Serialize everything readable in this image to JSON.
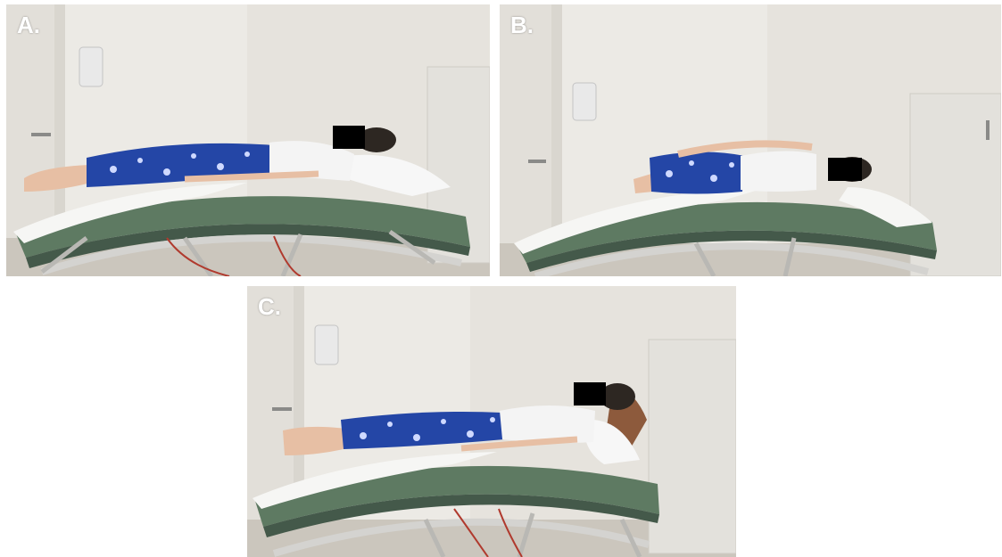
{
  "figure": {
    "panels": [
      {
        "id": "a",
        "label": "A.",
        "posture": "supine"
      },
      {
        "id": "b",
        "label": "B.",
        "posture": "side-lying"
      },
      {
        "id": "c",
        "label": "C.",
        "posture": "supine-head-raised"
      }
    ]
  },
  "colors": {
    "wall": "#eceae5",
    "wall_shade": "#dedbd4",
    "floor": "#cbc6bd",
    "mattress": "#5e7a62",
    "mattress_dark": "#44594a",
    "sheet": "#f6f6f4",
    "frame": "#d4d3d0",
    "pants": "#2446a6",
    "pants_pattern": "#cfd9ff",
    "shirt": "#f4f4f4",
    "skin": "#e7bfa4",
    "hair": "#2d2722",
    "censor": "#000000",
    "pillow": "#f7f7f7",
    "cabinet": "#e3e1dc",
    "door_frame": "#d9d6cf",
    "dispenser": "#e9e9e9",
    "headrest": "#8d5a3c"
  }
}
